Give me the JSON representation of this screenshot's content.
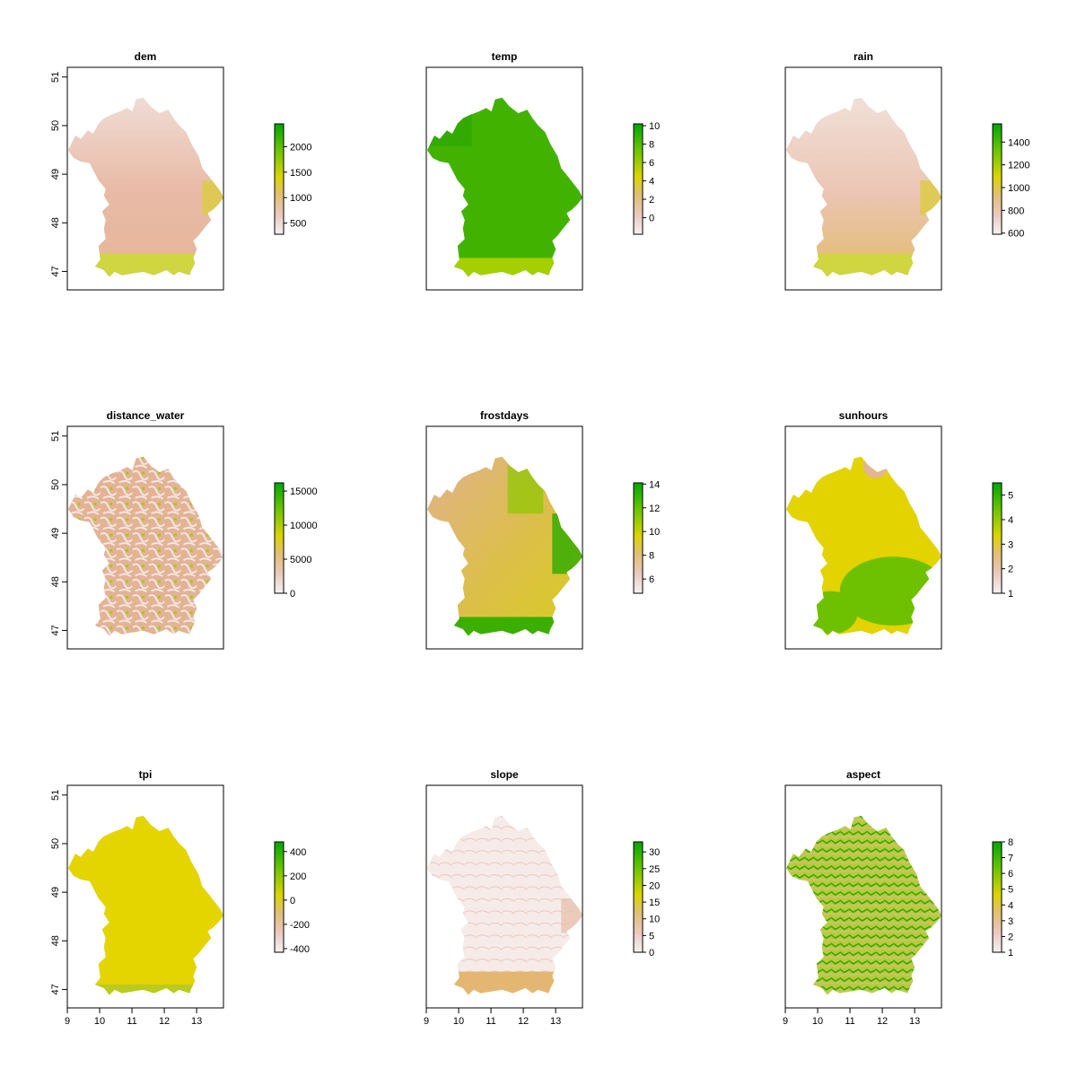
{
  "axis_x_ticks": [
    9,
    10,
    11,
    12,
    13
  ],
  "axis_y_ticks": [
    47,
    48,
    49,
    50,
    51
  ],
  "chart_data": [
    {
      "type": "heatmap",
      "title": "dem",
      "colorbar": {
        "min": 280,
        "max": 2450,
        "ticks": [
          500,
          1000,
          1500,
          2000
        ]
      },
      "palette": "terrain"
    },
    {
      "type": "heatmap",
      "title": "temp",
      "colorbar": {
        "min": -1.8,
        "max": 10.2,
        "ticks": [
          0,
          2,
          4,
          6,
          8,
          10
        ]
      },
      "palette": "terrain"
    },
    {
      "type": "heatmap",
      "title": "rain",
      "colorbar": {
        "min": 590,
        "max": 1560,
        "ticks": [
          600,
          800,
          1000,
          1200,
          1400
        ]
      },
      "palette": "terrain"
    },
    {
      "type": "heatmap",
      "title": "distance_water",
      "colorbar": {
        "min": 0,
        "max": 16200,
        "ticks": [
          0,
          5000,
          10000,
          15000
        ]
      },
      "palette": "terrain"
    },
    {
      "type": "heatmap",
      "title": "frostdays",
      "colorbar": {
        "min": 4.8,
        "max": 14.1,
        "ticks": [
          6,
          8,
          10,
          12,
          14
        ]
      },
      "palette": "terrain"
    },
    {
      "type": "heatmap",
      "title": "sunhours",
      "colorbar": {
        "min": 1,
        "max": 5.5,
        "ticks": [
          1,
          2,
          3,
          4,
          5
        ]
      },
      "palette": "terrain"
    },
    {
      "type": "heatmap",
      "title": "tpi",
      "colorbar": {
        "min": -430,
        "max": 480,
        "ticks": [
          -400,
          -200,
          0,
          200,
          400
        ]
      },
      "palette": "terrain"
    },
    {
      "type": "heatmap",
      "title": "slope",
      "colorbar": {
        "min": 0,
        "max": 33,
        "ticks": [
          0,
          5,
          10,
          15,
          20,
          25,
          30
        ]
      },
      "palette": "terrain"
    },
    {
      "type": "heatmap",
      "title": "aspect",
      "colorbar": {
        "min": 1,
        "max": 8,
        "ticks": [
          1,
          2,
          3,
          4,
          5,
          6,
          7,
          8
        ]
      },
      "palette": "terrain"
    }
  ],
  "colors": {
    "palette_stops": [
      "#f2f2f2",
      "#e7b8a5",
      "#e0c062",
      "#dcd400",
      "#6ac500",
      "#00a600"
    ],
    "map_fill": {
      "dem": "#e9bba8",
      "temp": "#41b200",
      "rain": "#eac0ad",
      "distance_water": "#e3b392",
      "frostdays": "#dcb84e",
      "sunhours": "#e3d300",
      "tpi": "#e4d400",
      "slope": "#f4e4e0",
      "aspect": "#aac93a"
    }
  }
}
